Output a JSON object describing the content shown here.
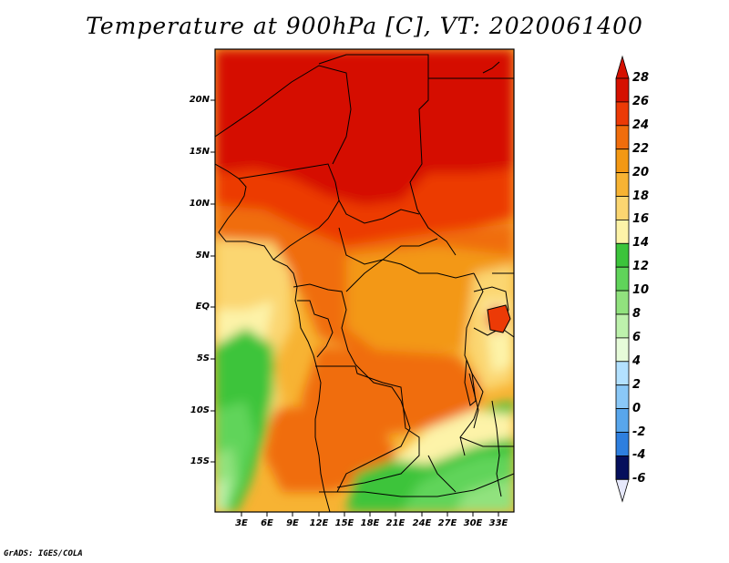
{
  "title": "Temperature at 900hPa [C], VT: 2020061400",
  "credit": "GrADS: IGES/COLA",
  "lat_ticks": [
    "20N",
    "15N",
    "10N",
    "5N",
    "EQ",
    "5S",
    "10S",
    "15S"
  ],
  "lon_ticks": [
    "3E",
    "6E",
    "9E",
    "12E",
    "15E",
    "18E",
    "21E",
    "24E",
    "27E",
    "30E",
    "33E"
  ],
  "colorbar": {
    "labels": [
      "28",
      "26",
      "24",
      "22",
      "20",
      "18",
      "16",
      "14",
      "12",
      "10",
      "8",
      "6",
      "4",
      "2",
      "0",
      "-2",
      "-4",
      "-6"
    ],
    "colors": [
      "#d51000",
      "#ec3a06",
      "#f06d0c",
      "#f39813",
      "#f7b333",
      "#fbd671",
      "#fdf3a8",
      "#3cc43b",
      "#60d45a",
      "#91e27e",
      "#bdf1ac",
      "#e6fbd9",
      "#b3e1ff",
      "#8ac8f7",
      "#58a6ec",
      "#2e7fdf",
      "#1a5fc8",
      "#0c45ae",
      "#082c8f",
      "#050f5c"
    ],
    "cap_top": "#d51000",
    "cap_bottom": "#e6e8fb"
  },
  "map": {
    "lat_range": [
      -19.5,
      24.5
    ],
    "lon_range": [
      0,
      34
    ],
    "field": "temperature 900hPa",
    "units": "C"
  }
}
